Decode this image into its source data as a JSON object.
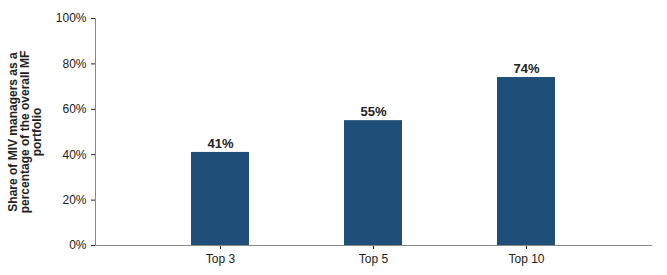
{
  "chart_data": {
    "type": "bar",
    "ylabel": "Share of MIV managers as a percentage of the overall MF portfolio",
    "categories": [
      "Top 3",
      "Top 5",
      "Top 10"
    ],
    "values": [
      41,
      55,
      74
    ],
    "value_labels": [
      "41%",
      "55%",
      "74%"
    ],
    "color": "#1f4e79",
    "ylim": [
      0,
      100
    ],
    "yticks": [
      {
        "value": 0,
        "label": "0%"
      },
      {
        "value": 20,
        "label": "20%"
      },
      {
        "value": 40,
        "label": "40%"
      },
      {
        "value": 60,
        "label": "60%"
      },
      {
        "value": 80,
        "label": "80%"
      },
      {
        "value": 100,
        "label": "100%"
      }
    ],
    "grid": false,
    "data_labels": true
  }
}
